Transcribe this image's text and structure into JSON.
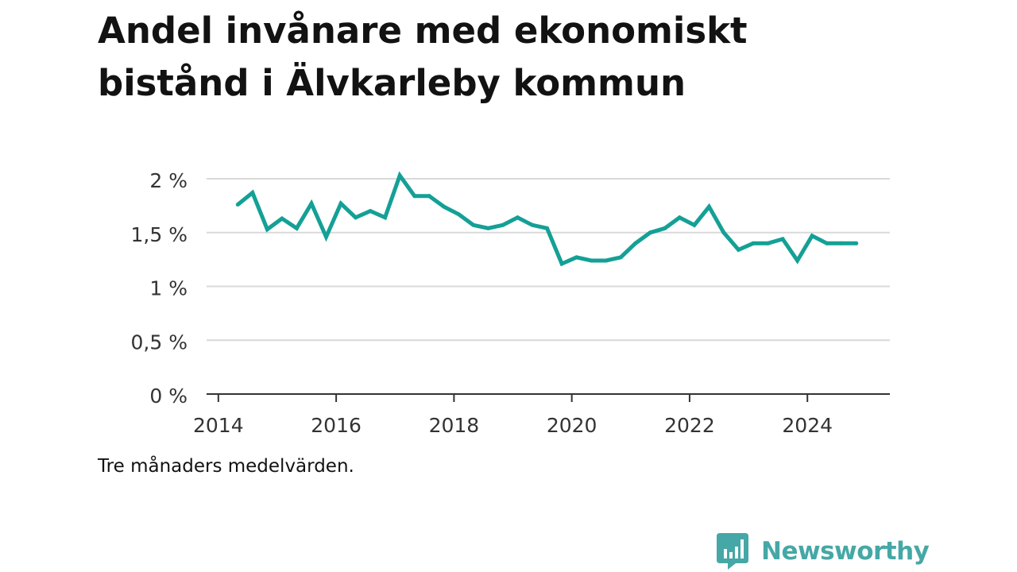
{
  "title": "Andel invånare med ekonomiskt bistånd i Älvkarleby kommun",
  "note": "Tre månaders medelvärden.",
  "brand": {
    "name": "Newsworthy",
    "color": "#45a8a6",
    "icon": "newsworthy-logo-icon"
  },
  "colors": {
    "line": "#14a096",
    "grid": "#d9d9d9",
    "axis": "#333333",
    "text": "#333333"
  },
  "chart_data": {
    "type": "line",
    "title": "Andel invånare med ekonomiskt bistånd i Älvkarleby kommun",
    "xlabel": "",
    "ylabel": "",
    "ylim": [
      0,
      2
    ],
    "xlim": [
      2013.8,
      2025.4
    ],
    "y_ticks": [
      0,
      0.5,
      1,
      1.5,
      2
    ],
    "y_tick_labels": [
      "0 %",
      "0,5 %",
      "1 %",
      "1,5 %",
      "2 %"
    ],
    "x_ticks": [
      2014,
      2016,
      2018,
      2020,
      2022,
      2024
    ],
    "x_tick_labels": [
      "2014",
      "2016",
      "2018",
      "2020",
      "2022",
      "2024"
    ],
    "grid": true,
    "series": [
      {
        "name": "Andel invånare med ekonomiskt bistånd",
        "x": [
          2014.33,
          2014.58,
          2014.83,
          2015.08,
          2015.33,
          2015.58,
          2015.83,
          2016.08,
          2016.33,
          2016.58,
          2016.83,
          2017.08,
          2017.33,
          2017.58,
          2017.83,
          2018.08,
          2018.33,
          2018.58,
          2018.83,
          2019.08,
          2019.33,
          2019.58,
          2019.83,
          2020.08,
          2020.33,
          2020.58,
          2020.83,
          2021.08,
          2021.33,
          2021.58,
          2021.83,
          2022.08,
          2022.33,
          2022.58,
          2022.83,
          2023.08,
          2023.33,
          2023.58,
          2023.83,
          2024.08,
          2024.33,
          2024.58,
          2024.83
        ],
        "values": [
          1.76,
          1.87,
          1.53,
          1.63,
          1.54,
          1.77,
          1.46,
          1.77,
          1.64,
          1.7,
          1.64,
          2.03,
          1.84,
          1.84,
          1.74,
          1.67,
          1.57,
          1.54,
          1.57,
          1.64,
          1.57,
          1.54,
          1.21,
          1.27,
          1.24,
          1.24,
          1.27,
          1.4,
          1.5,
          1.54,
          1.64,
          1.57,
          1.74,
          1.5,
          1.34,
          1.4,
          1.4,
          1.44,
          1.24,
          1.47,
          1.4,
          1.4,
          1.4
        ]
      }
    ]
  }
}
